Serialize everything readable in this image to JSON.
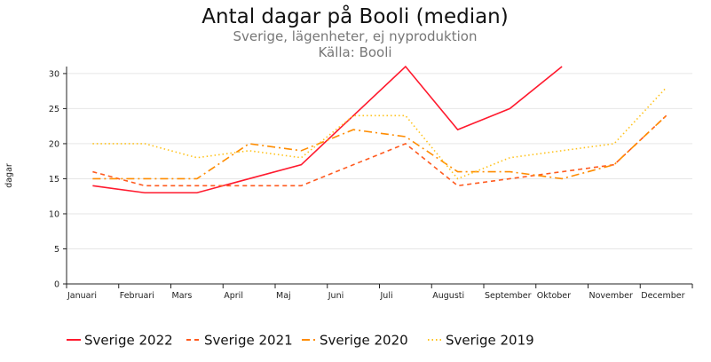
{
  "chart_data": {
    "type": "line",
    "title": "Antal dagar på Booli (median)",
    "subtitle": "Sverige, lägenheter, ej nyproduktion",
    "source": "Källa: Booli",
    "xlabel": "",
    "ylabel": "dagar",
    "categories": [
      "Januari",
      "Februari",
      "Mars",
      "April",
      "Maj",
      "Juni",
      "Juli",
      "Augusti",
      "September",
      "Oktober",
      "November",
      "December"
    ],
    "ylim": [
      0,
      31
    ],
    "yticks": [
      0,
      5,
      10,
      15,
      20,
      25,
      30
    ],
    "grid": true,
    "legend": "bottom",
    "series": [
      {
        "name": "Sverige 2022",
        "color": "#ff1a2e",
        "dash": "solid",
        "values": [
          14,
          13,
          13,
          15,
          17,
          24,
          31,
          22,
          25,
          31,
          null,
          null
        ]
      },
      {
        "name": "Sverige 2021",
        "color": "#ff5a1f",
        "dash": "dashed",
        "values": [
          16,
          14,
          14,
          14,
          14,
          17,
          20,
          14,
          15,
          16,
          17,
          24
        ]
      },
      {
        "name": "Sverige 2020",
        "color": "#ff8c00",
        "dash": "dashdot",
        "values": [
          15,
          15,
          15,
          20,
          19,
          22,
          21,
          16,
          16,
          15,
          17,
          24
        ]
      },
      {
        "name": "Sverige 2019",
        "color": "#ffc21a",
        "dash": "dotted",
        "values": [
          20,
          20,
          18,
          19,
          18,
          24,
          24,
          15,
          18,
          19,
          20,
          28
        ]
      }
    ]
  }
}
